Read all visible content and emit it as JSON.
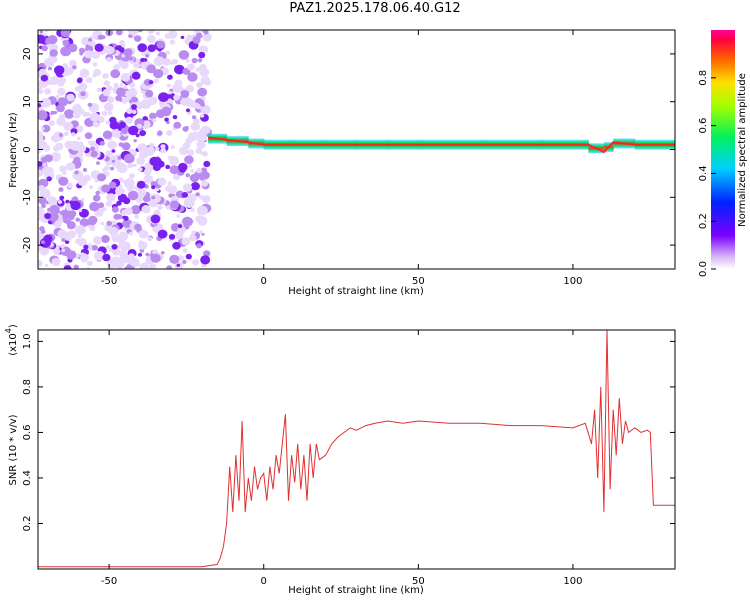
{
  "title": "PAZ1.2025.178.06.40.G12",
  "chart_data": [
    {
      "type": "heatmap",
      "xlabel": "Height of straight line (km)",
      "ylabel": "Frequency (Hz)",
      "xlim": [
        -73,
        133
      ],
      "ylim": [
        -25,
        25
      ],
      "xticks": [
        "-50",
        "0",
        "50",
        "100"
      ],
      "yticks": [
        "-20",
        "-10",
        "0",
        "10",
        "20"
      ],
      "colorbar": {
        "label": "Normalized spectral amplitude",
        "range": [
          0,
          1
        ],
        "ticks": [
          "0.0",
          "0.2",
          "0.4",
          "0.6",
          "0.8"
        ]
      },
      "noise_region_x": [
        -73,
        -18
      ],
      "signal_trace": [
        [
          -18,
          2.5
        ],
        [
          -12,
          2
        ],
        [
          -5,
          1.5
        ],
        [
          0,
          1
        ],
        [
          10,
          1
        ],
        [
          20,
          1
        ],
        [
          30,
          1
        ],
        [
          40,
          1
        ],
        [
          50,
          1
        ],
        [
          70,
          1
        ],
        [
          90,
          1
        ],
        [
          105,
          1
        ],
        [
          110,
          -0.5
        ],
        [
          113,
          1.5
        ],
        [
          120,
          1
        ],
        [
          133,
          1
        ]
      ]
    },
    {
      "type": "line",
      "xlabel": "Height of straight line (km)",
      "ylabel": "SNR (10 * v/v)",
      "yscale_label": "(x10",
      "yscale_exp": "4",
      "yscale_close": ")",
      "xlim": [
        -73,
        133
      ],
      "ylim": [
        0,
        1.05
      ],
      "xticks": [
        "-50",
        "0",
        "50",
        "100"
      ],
      "yticks": [
        "0.2",
        "0.4",
        "0.6",
        "0.8",
        "1.0"
      ],
      "color": "#e03030",
      "series": [
        {
          "x": [
            -73,
            -60,
            -45,
            -30,
            -20,
            -15,
            -14,
            -13,
            -12,
            -11,
            -10,
            -9,
            -8,
            -7,
            -6,
            -5,
            -4,
            -3,
            -2,
            -1,
            0,
            1,
            2,
            3,
            4,
            5,
            6,
            7,
            8,
            9,
            10,
            11,
            12,
            13,
            14,
            15,
            16,
            17,
            18,
            20,
            22,
            24,
            26,
            28,
            30,
            33,
            36,
            40,
            45,
            50,
            60,
            70,
            80,
            90,
            100,
            104,
            106,
            107,
            108,
            109,
            110,
            111,
            112,
            113,
            114,
            115,
            116,
            117,
            118,
            120,
            122,
            124,
            125,
            126,
            130,
            133
          ],
          "y": [
            0.01,
            0.01,
            0.01,
            0.01,
            0.01,
            0.02,
            0.05,
            0.1,
            0.2,
            0.45,
            0.25,
            0.5,
            0.3,
            0.65,
            0.25,
            0.4,
            0.3,
            0.45,
            0.35,
            0.4,
            0.42,
            0.3,
            0.45,
            0.35,
            0.5,
            0.42,
            0.55,
            0.68,
            0.3,
            0.5,
            0.38,
            0.55,
            0.35,
            0.5,
            0.3,
            0.55,
            0.4,
            0.55,
            0.48,
            0.5,
            0.55,
            0.58,
            0.6,
            0.62,
            0.61,
            0.63,
            0.64,
            0.65,
            0.64,
            0.65,
            0.64,
            0.64,
            0.63,
            0.63,
            0.62,
            0.64,
            0.55,
            0.7,
            0.4,
            0.8,
            0.25,
            1.05,
            0.35,
            0.7,
            0.5,
            0.75,
            0.55,
            0.65,
            0.6,
            0.62,
            0.6,
            0.61,
            0.6,
            0.28,
            0.28,
            0.28
          ]
        }
      ]
    }
  ]
}
